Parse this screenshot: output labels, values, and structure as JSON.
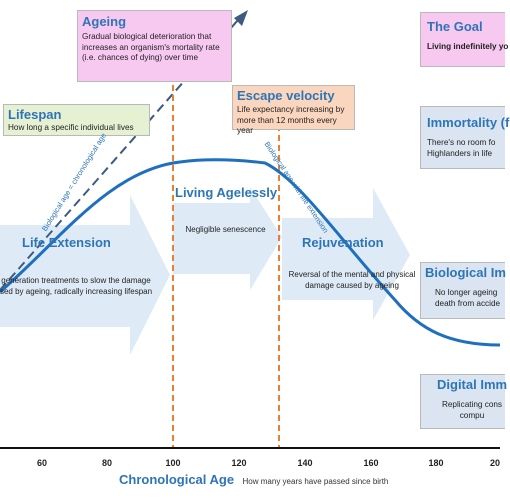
{
  "boxes": {
    "ageing": {
      "title": "Ageing",
      "desc": "Gradual biological deterioration that increases an organism's mortality rate (i.e. chances of dying) over time"
    },
    "lifespan": {
      "title": "Lifespan",
      "desc": "How long a specific individual lives"
    },
    "escape": {
      "title": "Escape velocity",
      "desc": "Life expectancy increasing by more than 12 months every year"
    },
    "goal": {
      "title": "The Goal",
      "desc": "Living indefinitely yo"
    },
    "immortality": {
      "title": "Immortality (f",
      "desc": "There's no room fo Highlanders in life"
    }
  },
  "stages": {
    "life_extension": {
      "title": "Life Extension",
      "desc": "generation treatments to slow the damage sed by ageing, radically increasing lifespan"
    },
    "living_agelessly": {
      "title": "Living Agelessly",
      "desc": "Negligible senescence"
    },
    "rejuvenation": {
      "title": "Rejuvenation",
      "desc": "Reversal of the mental and physical damage caused by ageing"
    },
    "biological": {
      "title": "Biological Im",
      "desc": "No longer ageing death from accide"
    },
    "digital": {
      "title": "Digital Imm",
      "desc": "Replicating cons compu"
    }
  },
  "diagonal_labels": {
    "chrono": "Biological age = chronological age",
    "extension": "Biological age with life extension"
  },
  "axis": {
    "title": "Chronological Age",
    "subtitle": "How many years have passed since birth",
    "ticks": [
      "60",
      "80",
      "100",
      "120",
      "140",
      "160",
      "180",
      "20"
    ]
  },
  "colors": {
    "accent": "#2e75b6",
    "dashed_vertical": "#ed7d31",
    "arrow_fill": "#deebf7"
  }
}
